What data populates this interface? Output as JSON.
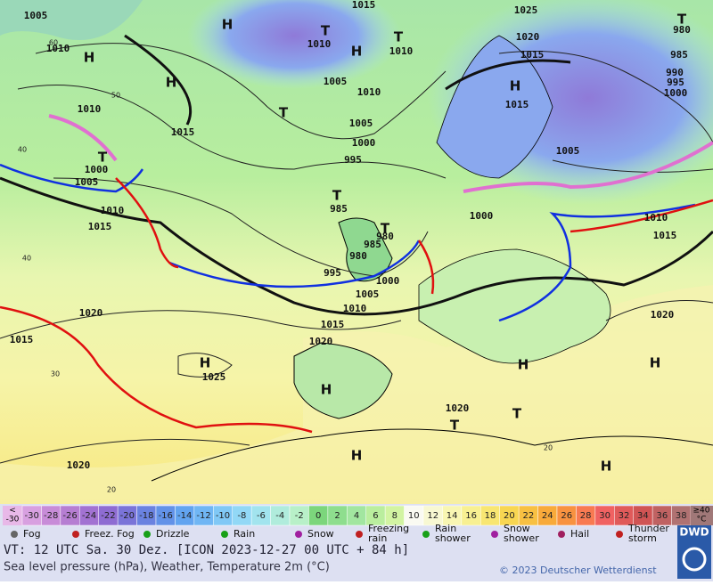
{
  "map": {
    "labels": [
      1005,
      1010,
      "H",
      "H",
      1015,
      "T",
      1010,
      "H",
      "T",
      1010,
      1025,
      1020,
      1015,
      "T",
      980,
      985,
      990,
      995,
      1000,
      "H",
      1005,
      1010,
      "H",
      1015,
      1010,
      "T",
      1005,
      1000,
      1005,
      1015,
      "T",
      1000,
      1005,
      995,
      "T",
      985,
      1010,
      1000,
      1015,
      1010,
      1015,
      "T",
      980,
      985,
      980,
      995,
      1000,
      1005,
      1010,
      1015,
      1020,
      1020,
      1015,
      1020,
      "H",
      1025,
      "H",
      "H",
      "H",
      "T",
      1020,
      "T",
      "H",
      "H",
      1020
    ],
    "latitudes": [
      60,
      50,
      40,
      40,
      30,
      20,
      20
    ]
  },
  "scale": {
    "lower": [
      "<",
      "-30"
    ],
    "upper": [
      "≥40",
      "°C"
    ],
    "steps": [
      {
        "value": -30,
        "color": "#d8a0e0"
      },
      {
        "value": -28,
        "color": "#c88cd8"
      },
      {
        "value": -26,
        "color": "#b67ed2"
      },
      {
        "value": -24,
        "color": "#a272d2"
      },
      {
        "value": -22,
        "color": "#8e6cd2"
      },
      {
        "value": -20,
        "color": "#7a74d8"
      },
      {
        "value": -18,
        "color": "#6a82e0"
      },
      {
        "value": -16,
        "color": "#6292e8"
      },
      {
        "value": -14,
        "color": "#62a4f0"
      },
      {
        "value": -12,
        "color": "#70b6f4"
      },
      {
        "value": -10,
        "color": "#80c8f6"
      },
      {
        "value": -8,
        "color": "#92d8f6"
      },
      {
        "value": -6,
        "color": "#a2e4ee"
      },
      {
        "value": -4,
        "color": "#b0ecdc"
      },
      {
        "value": -2,
        "color": "#b8f0c8"
      },
      {
        "value": 0,
        "color": "#7cd67c"
      },
      {
        "value": 2,
        "color": "#8ede8e"
      },
      {
        "value": 4,
        "color": "#a2e6a0"
      },
      {
        "value": 6,
        "color": "#baee9e"
      },
      {
        "value": 8,
        "color": "#d2f4a2"
      },
      {
        "value": 10,
        "color": "#fafaf2"
      },
      {
        "value": 12,
        "color": "#f8f8d2"
      },
      {
        "value": 14,
        "color": "#f8f6b2"
      },
      {
        "value": 16,
        "color": "#f8f092"
      },
      {
        "value": 18,
        "color": "#f8e672"
      },
      {
        "value": 20,
        "color": "#f8d652"
      },
      {
        "value": 22,
        "color": "#f8c042"
      },
      {
        "value": 24,
        "color": "#f8aa3a"
      },
      {
        "value": 26,
        "color": "#f89240"
      },
      {
        "value": 28,
        "color": "#f87a52"
      },
      {
        "value": 30,
        "color": "#f06262"
      },
      {
        "value": 32,
        "color": "#e05a5a"
      },
      {
        "value": 34,
        "color": "#d05454"
      },
      {
        "value": 36,
        "color": "#c06262"
      },
      {
        "value": 38,
        "color": "#b07272"
      }
    ]
  },
  "legend": [
    "Fog",
    "Freez. Fog",
    "Drizzle",
    "Rain",
    "Snow",
    "Freezing rain",
    "Rain shower",
    "Snow shower",
    "Hail",
    "Thunder storm"
  ],
  "footer": {
    "valid": "VT: 12 UTC Sa.  30 Dez. [ICON 2023-12-27  00 UTC + 84 h]",
    "subtitle": "Sea level pressure (hPa), Weather, Temperature 2m (°C)",
    "copyright": "© 2023 Deutscher Wetterdienst",
    "logo": "DWD"
  }
}
